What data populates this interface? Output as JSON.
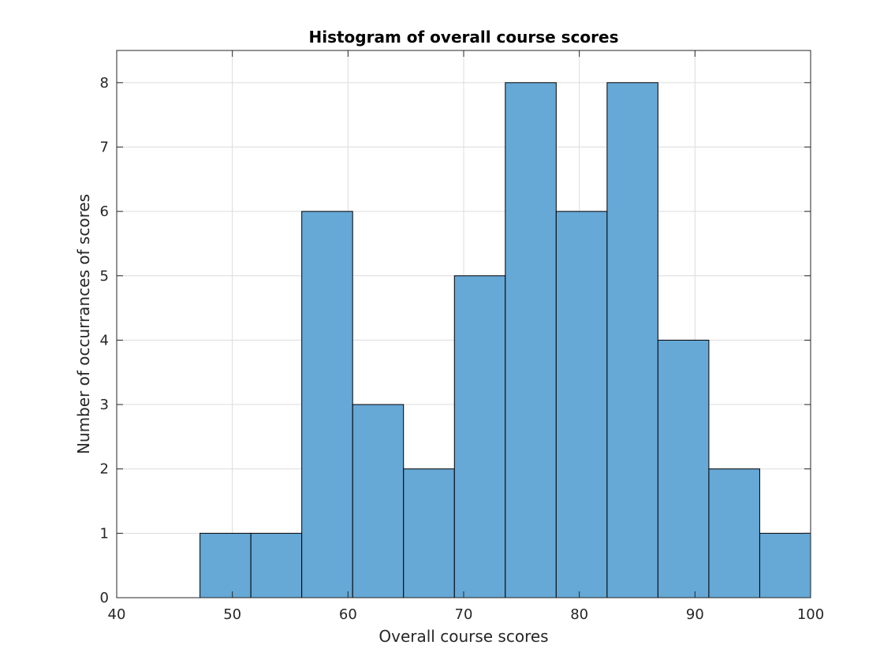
{
  "chart_data": {
    "type": "bar",
    "title": "Histogram of overall course scores",
    "xlabel": "Overall course scores",
    "ylabel": "Number of occurrances of scores",
    "xlim": [
      40,
      100
    ],
    "ylim": [
      0,
      8.5
    ],
    "x_ticks": [
      40,
      50,
      60,
      70,
      80,
      90,
      100
    ],
    "y_ticks": [
      0,
      1,
      2,
      3,
      4,
      5,
      6,
      7,
      8
    ],
    "bin_edges": [
      47.2,
      51.6,
      56.0,
      60.4,
      64.8,
      69.2,
      73.6,
      78.0,
      82.4,
      86.8,
      91.2,
      95.6,
      100.0
    ],
    "values": [
      1,
      1,
      6,
      3,
      2,
      5,
      8,
      6,
      8,
      4,
      2,
      1
    ],
    "grid": true,
    "bar_color": "#66a8d6",
    "edge_color": "#000000"
  }
}
